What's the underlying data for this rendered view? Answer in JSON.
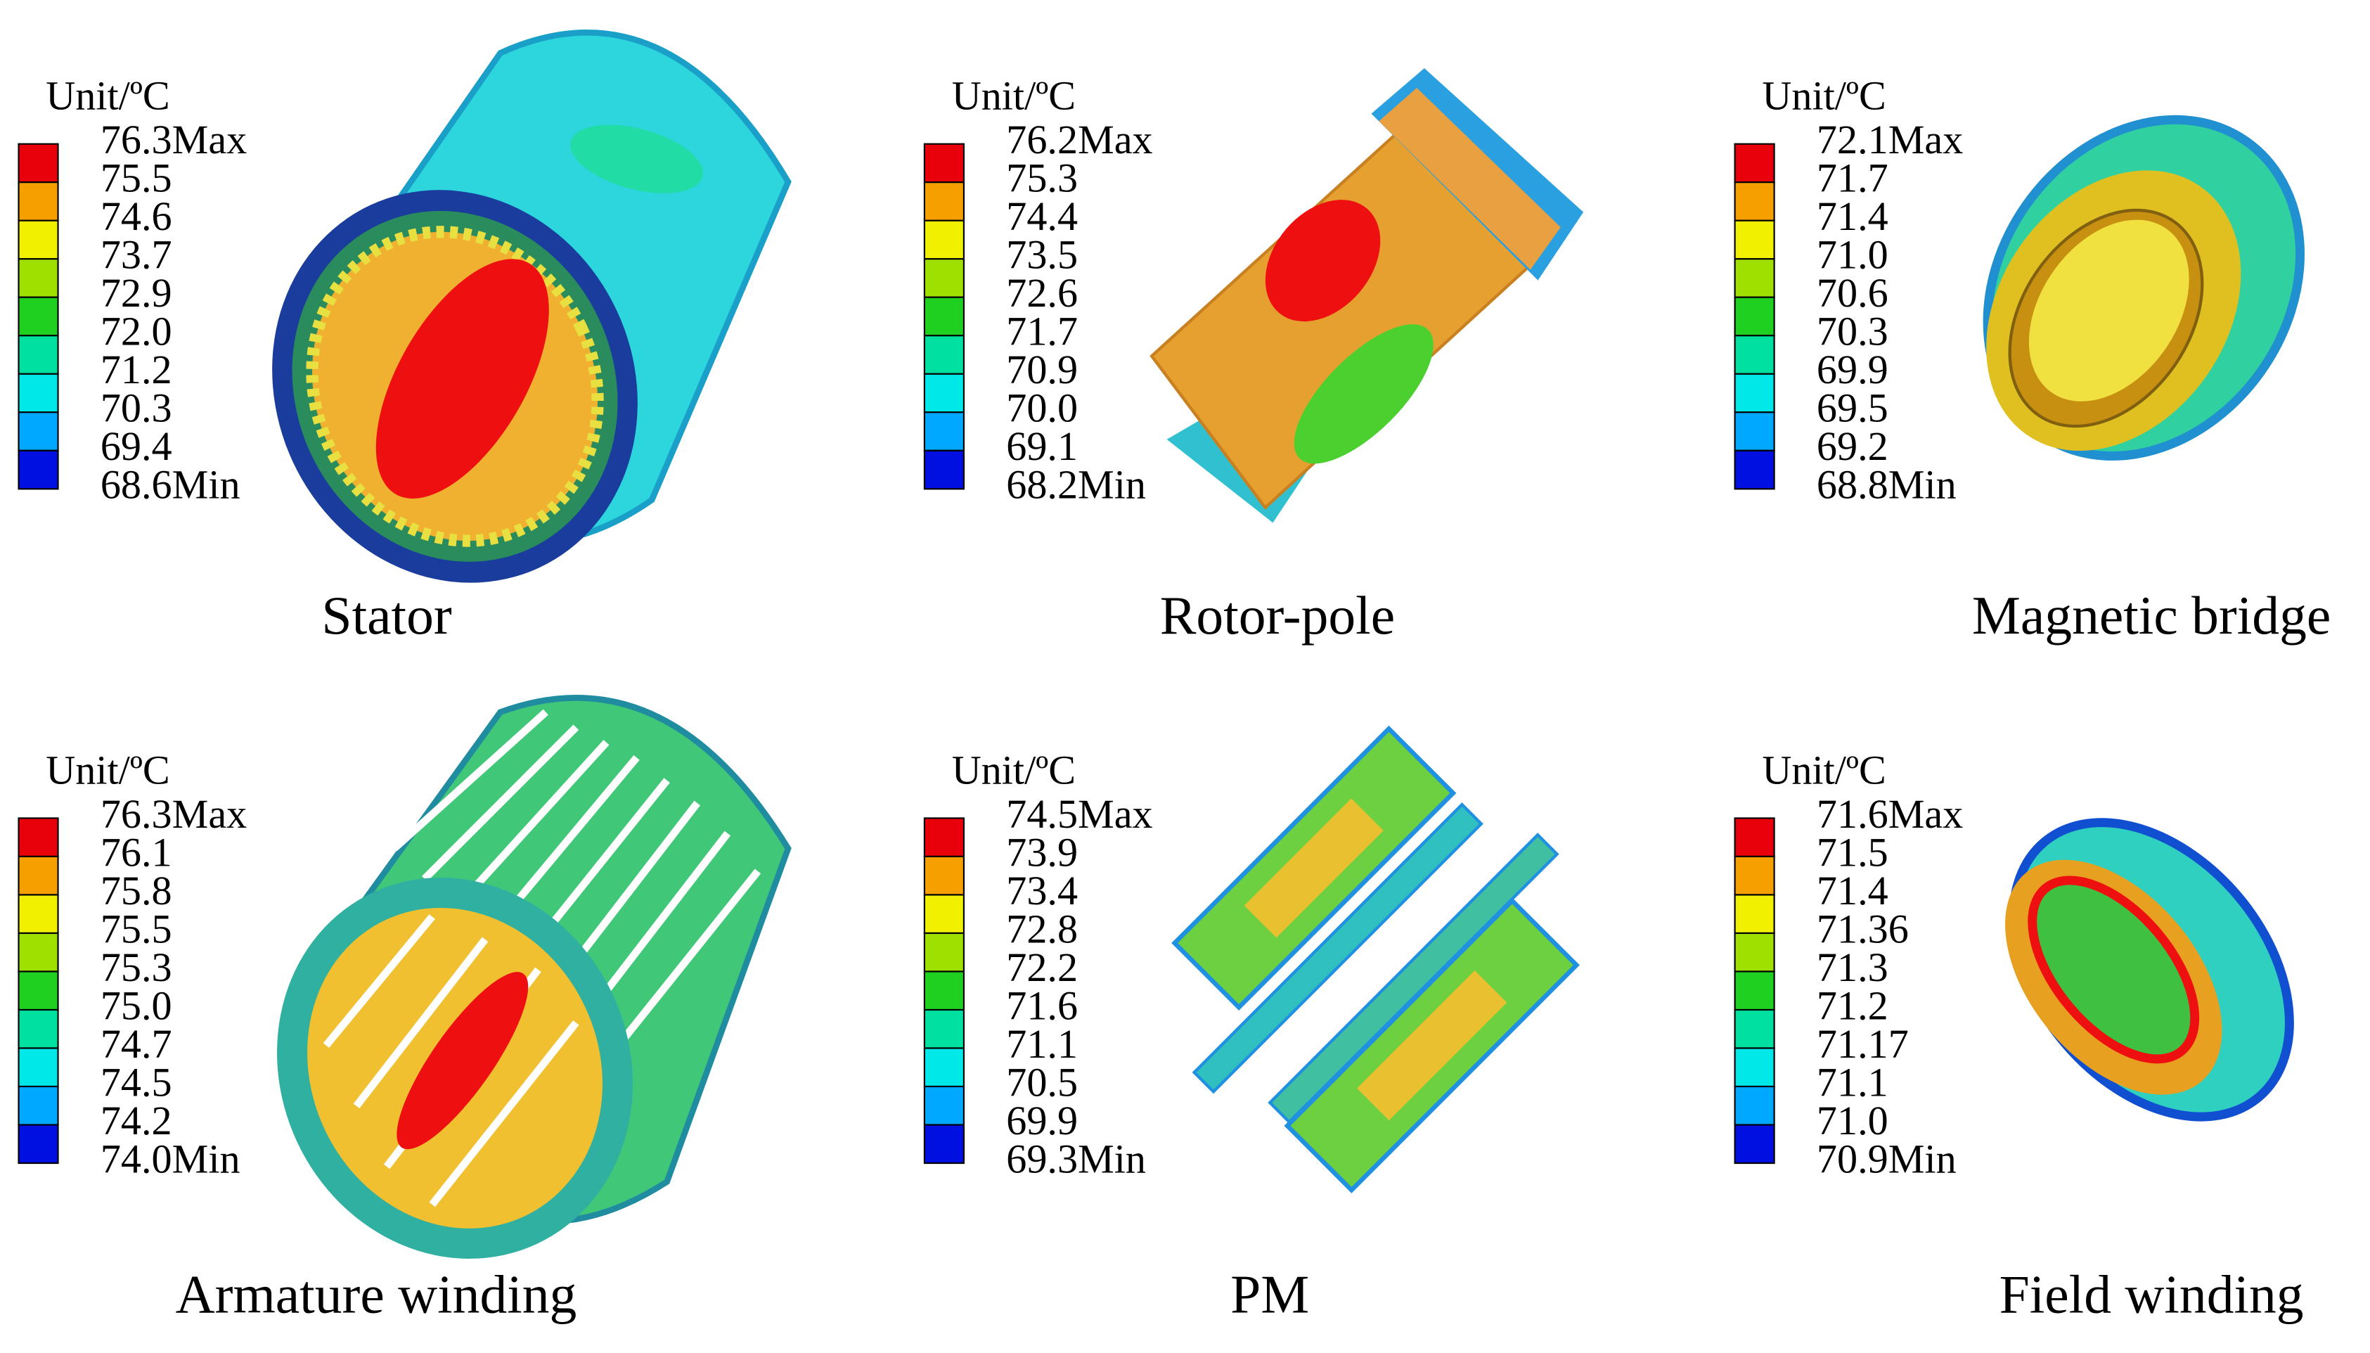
{
  "panels": [
    {
      "unit": "Unit/ºC",
      "levels": [
        "76.3Max",
        "75.5",
        "74.6",
        "73.7",
        "72.9",
        "72.0",
        "71.2",
        "70.3",
        "69.4",
        "68.6Min"
      ],
      "caption": "Stator"
    },
    {
      "unit": "Unit/ºC",
      "levels": [
        "76.2Max",
        "75.3",
        "74.4",
        "73.5",
        "72.6",
        "71.7",
        "70.9",
        "70.0",
        "69.1",
        "68.2Min"
      ],
      "caption": "Rotor-pole"
    },
    {
      "unit": "Unit/ºC",
      "levels": [
        "72.1Max",
        "71.7",
        "71.4",
        "71.0",
        "70.6",
        "70.3",
        "69.9",
        "69.5",
        "69.2",
        "68.8Min"
      ],
      "caption": "Magnetic bridge"
    },
    {
      "unit": "Unit/ºC",
      "levels": [
        "76.3Max",
        "76.1",
        "75.8",
        "75.5",
        "75.3",
        "75.0",
        "74.7",
        "74.5",
        "74.2",
        "74.0Min"
      ],
      "caption": "Armature winding"
    },
    {
      "unit": "Unit/ºC",
      "levels": [
        "74.5Max",
        "73.9",
        "73.4",
        "72.8",
        "72.2",
        "71.6",
        "71.1",
        "70.5",
        "69.9",
        "69.3Min"
      ],
      "caption": "PM"
    },
    {
      "unit": "Unit/ºC",
      "levels": [
        "71.6Max",
        "71.5",
        "71.4",
        "71.36",
        "71.3",
        "71.2",
        "71.17",
        "71.1",
        "71.0",
        "70.9Min"
      ],
      "caption": "Field winding"
    }
  ]
}
